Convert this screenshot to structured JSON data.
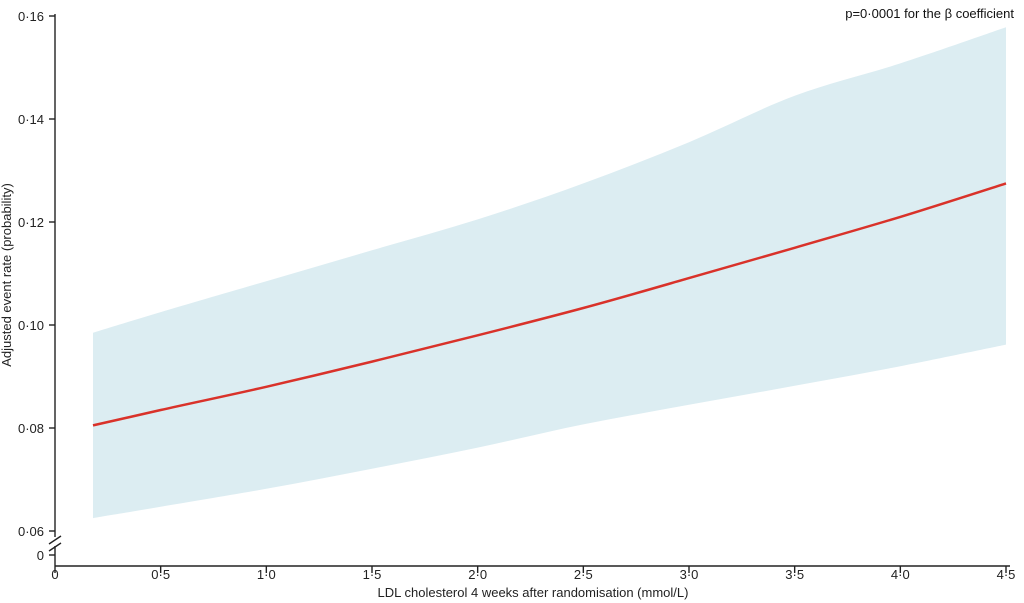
{
  "chart_data": {
    "type": "line",
    "xlabel": "LDL cholesterol 4 weeks after randomisation (mmol/L)",
    "ylabel": "Adjusted event rate (probability)",
    "annotation": "p=0·0001 for the β coefficient",
    "x_ticks": [
      {
        "value": 0,
        "label": "0"
      },
      {
        "value": 0.5,
        "label": "0·5"
      },
      {
        "value": 1.0,
        "label": "1·0"
      },
      {
        "value": 1.5,
        "label": "1·5"
      },
      {
        "value": 2.0,
        "label": "2·0"
      },
      {
        "value": 2.5,
        "label": "2·5"
      },
      {
        "value": 3.0,
        "label": "3·0"
      },
      {
        "value": 3.5,
        "label": "3·5"
      },
      {
        "value": 4.0,
        "label": "4·0"
      },
      {
        "value": 4.5,
        "label": "4·5"
      }
    ],
    "y_ticks": [
      {
        "value": 0.06,
        "label": "0·06"
      },
      {
        "value": 0.08,
        "label": "0·08"
      },
      {
        "value": 0.1,
        "label": "0·10"
      },
      {
        "value": 0.12,
        "label": "0·12"
      },
      {
        "value": 0.14,
        "label": "0·14"
      },
      {
        "value": 0.16,
        "label": "0·16"
      }
    ],
    "y_zero_label": "0",
    "y_axis_break": true,
    "xlim": [
      0,
      4.5
    ],
    "ylim": [
      0.06,
      0.16
    ],
    "colors": {
      "line": "#d9322a",
      "band": "#dcedf2",
      "axis": "#222222"
    },
    "series": [
      {
        "x": [
          0.18,
          0.5,
          1.0,
          1.5,
          2.0,
          2.5,
          3.0,
          3.5,
          4.0,
          4.5
        ],
        "y": [
          0.0805,
          0.0835,
          0.088,
          0.0929,
          0.098,
          0.1033,
          0.1091,
          0.115,
          0.121,
          0.1275
        ],
        "lower": [
          0.0625,
          0.0647,
          0.0682,
          0.0721,
          0.0762,
          0.0807,
          0.0845,
          0.0882,
          0.092,
          0.0962
        ],
        "upper": [
          0.0985,
          0.1025,
          0.1085,
          0.1145,
          0.1205,
          0.1275,
          0.1355,
          0.1445,
          0.1508,
          0.1578
        ]
      }
    ]
  }
}
